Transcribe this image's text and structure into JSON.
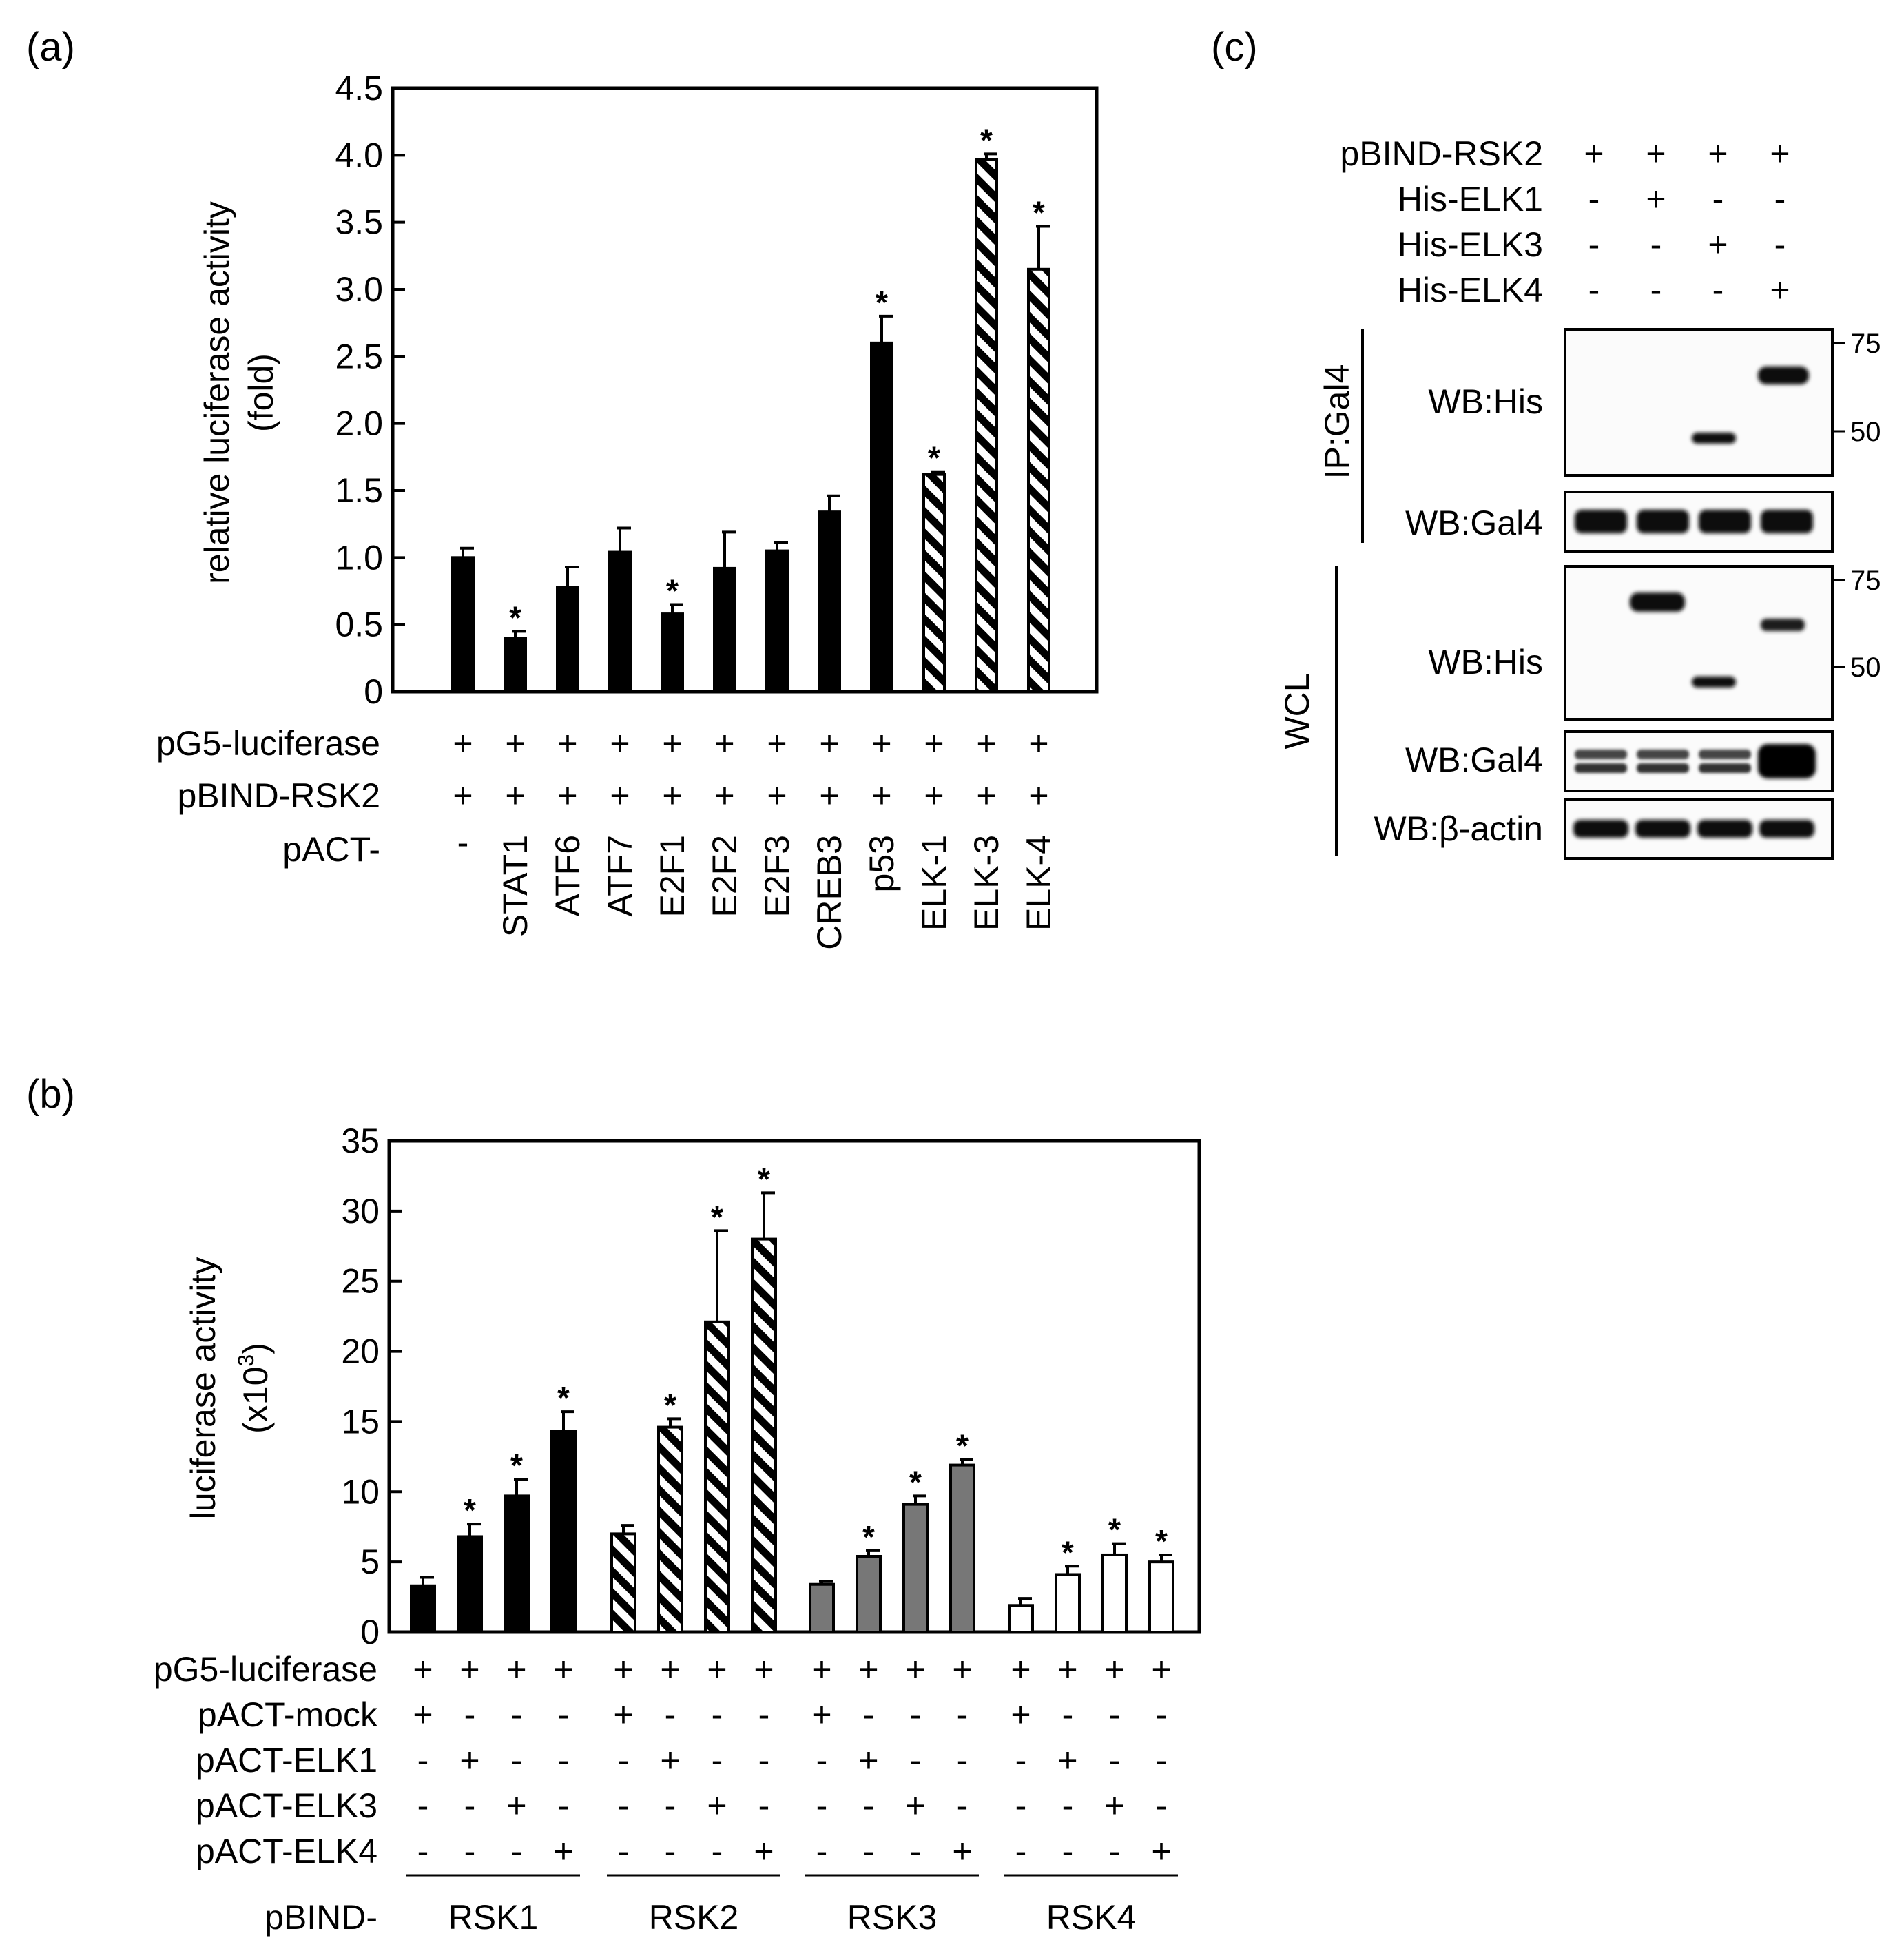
{
  "chart_data": [
    {
      "id": "a",
      "type": "bar",
      "panel_label": "(a)",
      "ylabel_lines": [
        "relative luciferase activity",
        "(fold)"
      ],
      "ylim": [
        0,
        4.5
      ],
      "yticks": [
        "0",
        "0.5",
        "1.0",
        "1.5",
        "2.0",
        "2.5",
        "3.0",
        "3.5",
        "4.0",
        "4.5"
      ],
      "ytick_values": [
        0,
        0.5,
        1.0,
        1.5,
        2.0,
        2.5,
        3.0,
        3.5,
        4.0,
        4.5
      ],
      "categories": [
        "-",
        "STAT1",
        "ATF6",
        "ATF7",
        "E2F1",
        "E2F2",
        "E2F3",
        "CREB3",
        "p53",
        "ELK-1",
        "ELK-3",
        "ELK-4"
      ],
      "values": [
        1.0,
        0.4,
        0.78,
        1.04,
        0.58,
        0.92,
        1.05,
        1.34,
        2.6,
        1.62,
        3.97,
        3.15
      ],
      "errors": [
        0.07,
        0.05,
        0.15,
        0.18,
        0.07,
        0.27,
        0.06,
        0.12,
        0.2,
        0.02,
        0.04,
        0.32
      ],
      "significant": [
        false,
        true,
        false,
        false,
        true,
        false,
        false,
        false,
        true,
        true,
        true,
        true
      ],
      "patterns": [
        "solid",
        "solid",
        "solid",
        "solid",
        "solid",
        "solid",
        "solid",
        "solid",
        "solid",
        "hatched",
        "hatched",
        "hatched"
      ],
      "star_symbol": "*",
      "rows": [
        {
          "label": "pG5-luciferase",
          "values": [
            "+",
            "+",
            "+",
            "+",
            "+",
            "+",
            "+",
            "+",
            "+",
            "+",
            "+",
            "+"
          ]
        },
        {
          "label": "pBIND-RSK2",
          "values": [
            "+",
            "+",
            "+",
            "+",
            "+",
            "+",
            "+",
            "+",
            "+",
            "+",
            "+",
            "+"
          ]
        }
      ],
      "category_row_label": "pACT-"
    },
    {
      "id": "b",
      "type": "bar",
      "panel_label": "(b)",
      "ylabel_lines": [
        "luciferase activity",
        "(x10",
        "3",
        ")"
      ],
      "ylim": [
        0,
        35
      ],
      "yticks": [
        "0",
        "5",
        "10",
        "15",
        "20",
        "25",
        "30",
        "35"
      ],
      "ytick_values": [
        0,
        5,
        10,
        15,
        20,
        25,
        30,
        35
      ],
      "values": [
        3.3,
        6.8,
        9.7,
        14.3,
        7.0,
        14.6,
        22.1,
        28.0,
        3.4,
        5.4,
        9.1,
        11.9,
        1.9,
        4.1,
        5.5,
        5.0
      ],
      "errors": [
        0.6,
        0.9,
        1.2,
        1.4,
        0.6,
        0.6,
        6.5,
        3.3,
        0.2,
        0.4,
        0.6,
        0.4,
        0.5,
        0.6,
        0.8,
        0.5
      ],
      "significant": [
        false,
        true,
        true,
        true,
        false,
        true,
        true,
        true,
        false,
        true,
        true,
        true,
        false,
        true,
        true,
        true
      ],
      "fills": [
        "#000000",
        "#000000",
        "#000000",
        "#000000",
        "hatched",
        "hatched",
        "hatched",
        "hatched",
        "#777777",
        "#777777",
        "#777777",
        "#777777",
        "#ffffff",
        "#ffffff",
        "#ffffff",
        "#ffffff"
      ],
      "star_symbol": "*",
      "rows": [
        {
          "label": "pG5-luciferase",
          "values": [
            "+",
            "+",
            "+",
            "+",
            "+",
            "+",
            "+",
            "+",
            "+",
            "+",
            "+",
            "+",
            "+",
            "+",
            "+",
            "+"
          ]
        },
        {
          "label": "pACT-mock",
          "values": [
            "+",
            "-",
            "-",
            "-",
            "+",
            "-",
            "-",
            "-",
            "+",
            "-",
            "-",
            "-",
            "+",
            "-",
            "-",
            "-"
          ]
        },
        {
          "label": "pACT-ELK1",
          "values": [
            "-",
            "+",
            "-",
            "-",
            "-",
            "+",
            "-",
            "-",
            "-",
            "+",
            "-",
            "-",
            "-",
            "+",
            "-",
            "-"
          ]
        },
        {
          "label": "pACT-ELK3",
          "values": [
            "-",
            "-",
            "+",
            "-",
            "-",
            "-",
            "+",
            "-",
            "-",
            "-",
            "+",
            "-",
            "-",
            "-",
            "+",
            "-"
          ]
        },
        {
          "label": "pACT-ELK4",
          "values": [
            "-",
            "-",
            "-",
            "+",
            "-",
            "-",
            "-",
            "+",
            "-",
            "-",
            "-",
            "+",
            "-",
            "-",
            "-",
            "+"
          ]
        }
      ],
      "group_row_label": "pBIND-",
      "groups": [
        "RSK1",
        "RSK2",
        "RSK3",
        "RSK4"
      ]
    }
  ],
  "blot": {
    "panel_label": "(c)",
    "conditions": [
      {
        "label": "pBIND-RSK2",
        "values": [
          "+",
          "+",
          "+",
          "+"
        ]
      },
      {
        "label": "His-ELK1",
        "values": [
          "-",
          "+",
          "-",
          "-"
        ]
      },
      {
        "label": "His-ELK3",
        "values": [
          "-",
          "-",
          "+",
          "-"
        ]
      },
      {
        "label": "His-ELK4",
        "values": [
          "-",
          "-",
          "-",
          "+"
        ]
      }
    ],
    "section_labels": [
      "IP:Gal4",
      "WCL"
    ],
    "panels": [
      {
        "label": "WB:His",
        "section": "IP:Gal4",
        "markers": [
          "75",
          "50"
        ]
      },
      {
        "label": "WB:Gal4",
        "section": "IP:Gal4",
        "markers": []
      },
      {
        "label": "WB:His",
        "section": "WCL",
        "markers": [
          "75",
          "50"
        ]
      },
      {
        "label": "WB:Gal4",
        "section": "WCL",
        "markers": []
      },
      {
        "label": "WB:β-actin",
        "section": "WCL",
        "markers": []
      }
    ]
  }
}
